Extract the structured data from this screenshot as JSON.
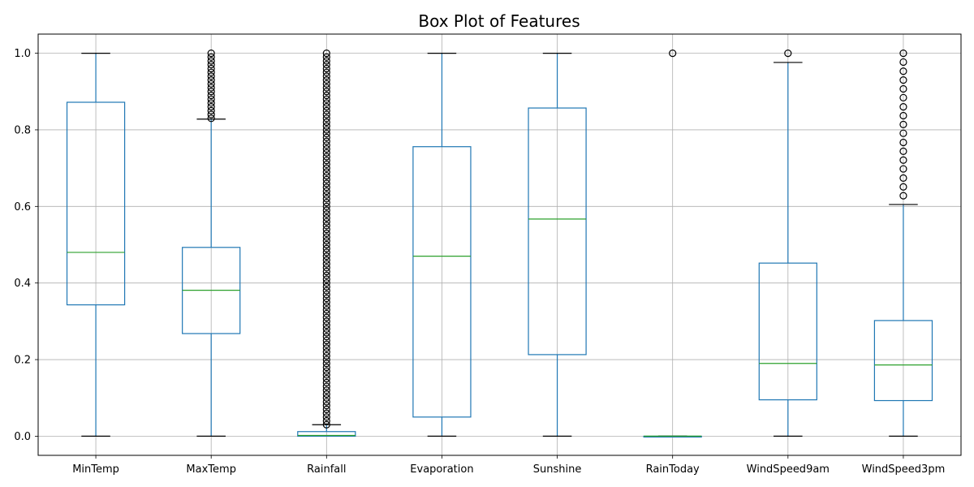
{
  "chart_data": {
    "type": "boxplot",
    "title": "Box Plot of Features",
    "xlabel": "",
    "ylabel": "",
    "ylim": [
      -0.05,
      1.05
    ],
    "yticks": [
      "0.0",
      "0.2",
      "0.4",
      "0.6",
      "0.8",
      "1.0"
    ],
    "grid": true,
    "colors": {
      "box": "#1f77b4",
      "median": "#2ca02c",
      "grid": "#b0b0b0",
      "outlier": "#000000"
    },
    "categories": [
      "MinTemp",
      "MaxTemp",
      "Rainfall",
      "Evaporation",
      "Sunshine",
      "RainToday",
      "WindSpeed9am",
      "WindSpeed3pm"
    ],
    "boxes": [
      {
        "name": "MinTemp",
        "whislo": 0.0,
        "q1": 0.343,
        "med": 0.48,
        "q3": 0.872,
        "whishi": 1.0,
        "fliers": []
      },
      {
        "name": "MaxTemp",
        "whislo": 0.0,
        "q1": 0.268,
        "med": 0.381,
        "q3": 0.493,
        "whishi": 0.828,
        "fliers": [
          0.83,
          0.84,
          0.85,
          0.86,
          0.87,
          0.88,
          0.89,
          0.9,
          0.91,
          0.92,
          0.93,
          0.94,
          0.95,
          0.96,
          0.97,
          0.98,
          0.99,
          1.0
        ]
      },
      {
        "name": "Rainfall",
        "whislo": 0.0,
        "q1": 0.0,
        "med": 0.002,
        "q3": 0.012,
        "whishi": 0.03,
        "fliers": [
          0.03,
          0.04,
          0.05,
          0.06,
          0.07,
          0.08,
          0.09,
          0.1,
          0.11,
          0.12,
          0.13,
          0.14,
          0.15,
          0.16,
          0.17,
          0.18,
          0.19,
          0.2,
          0.21,
          0.22,
          0.23,
          0.24,
          0.25,
          0.26,
          0.27,
          0.28,
          0.29,
          0.3,
          0.31,
          0.32,
          0.33,
          0.34,
          0.35,
          0.36,
          0.37,
          0.38,
          0.39,
          0.4,
          0.41,
          0.42,
          0.43,
          0.44,
          0.45,
          0.46,
          0.47,
          0.48,
          0.49,
          0.5,
          0.51,
          0.52,
          0.53,
          0.54,
          0.55,
          0.56,
          0.57,
          0.58,
          0.59,
          0.6,
          0.61,
          0.62,
          0.63,
          0.64,
          0.65,
          0.66,
          0.67,
          0.68,
          0.69,
          0.7,
          0.71,
          0.72,
          0.73,
          0.74,
          0.75,
          0.76,
          0.77,
          0.78,
          0.79,
          0.8,
          0.81,
          0.82,
          0.83,
          0.84,
          0.85,
          0.86,
          0.87,
          0.88,
          0.89,
          0.9,
          0.91,
          0.92,
          0.93,
          0.94,
          0.95,
          0.96,
          0.97,
          0.98,
          0.99,
          1.0
        ]
      },
      {
        "name": "Evaporation",
        "whislo": 0.0,
        "q1": 0.05,
        "med": 0.47,
        "q3": 0.756,
        "whishi": 1.0,
        "fliers": []
      },
      {
        "name": "Sunshine",
        "whislo": 0.0,
        "q1": 0.213,
        "med": 0.567,
        "q3": 0.857,
        "whishi": 1.0,
        "fliers": []
      },
      {
        "name": "RainToday",
        "whislo": 0.0,
        "q1": 0.0,
        "med": 0.0,
        "q3": 0.0,
        "whishi": 0.0,
        "fliers": [
          1.0
        ]
      },
      {
        "name": "WindSpeed9am",
        "whislo": 0.0,
        "q1": 0.095,
        "med": 0.19,
        "q3": 0.452,
        "whishi": 0.976,
        "fliers": [
          1.0
        ]
      },
      {
        "name": "WindSpeed3pm",
        "whislo": 0.0,
        "q1": 0.093,
        "med": 0.186,
        "q3": 0.302,
        "whishi": 0.605,
        "fliers": [
          0.628,
          0.651,
          0.674,
          0.698,
          0.721,
          0.744,
          0.767,
          0.791,
          0.814,
          0.837,
          0.86,
          0.884,
          0.907,
          0.93,
          0.953,
          0.977,
          1.0
        ]
      }
    ]
  }
}
